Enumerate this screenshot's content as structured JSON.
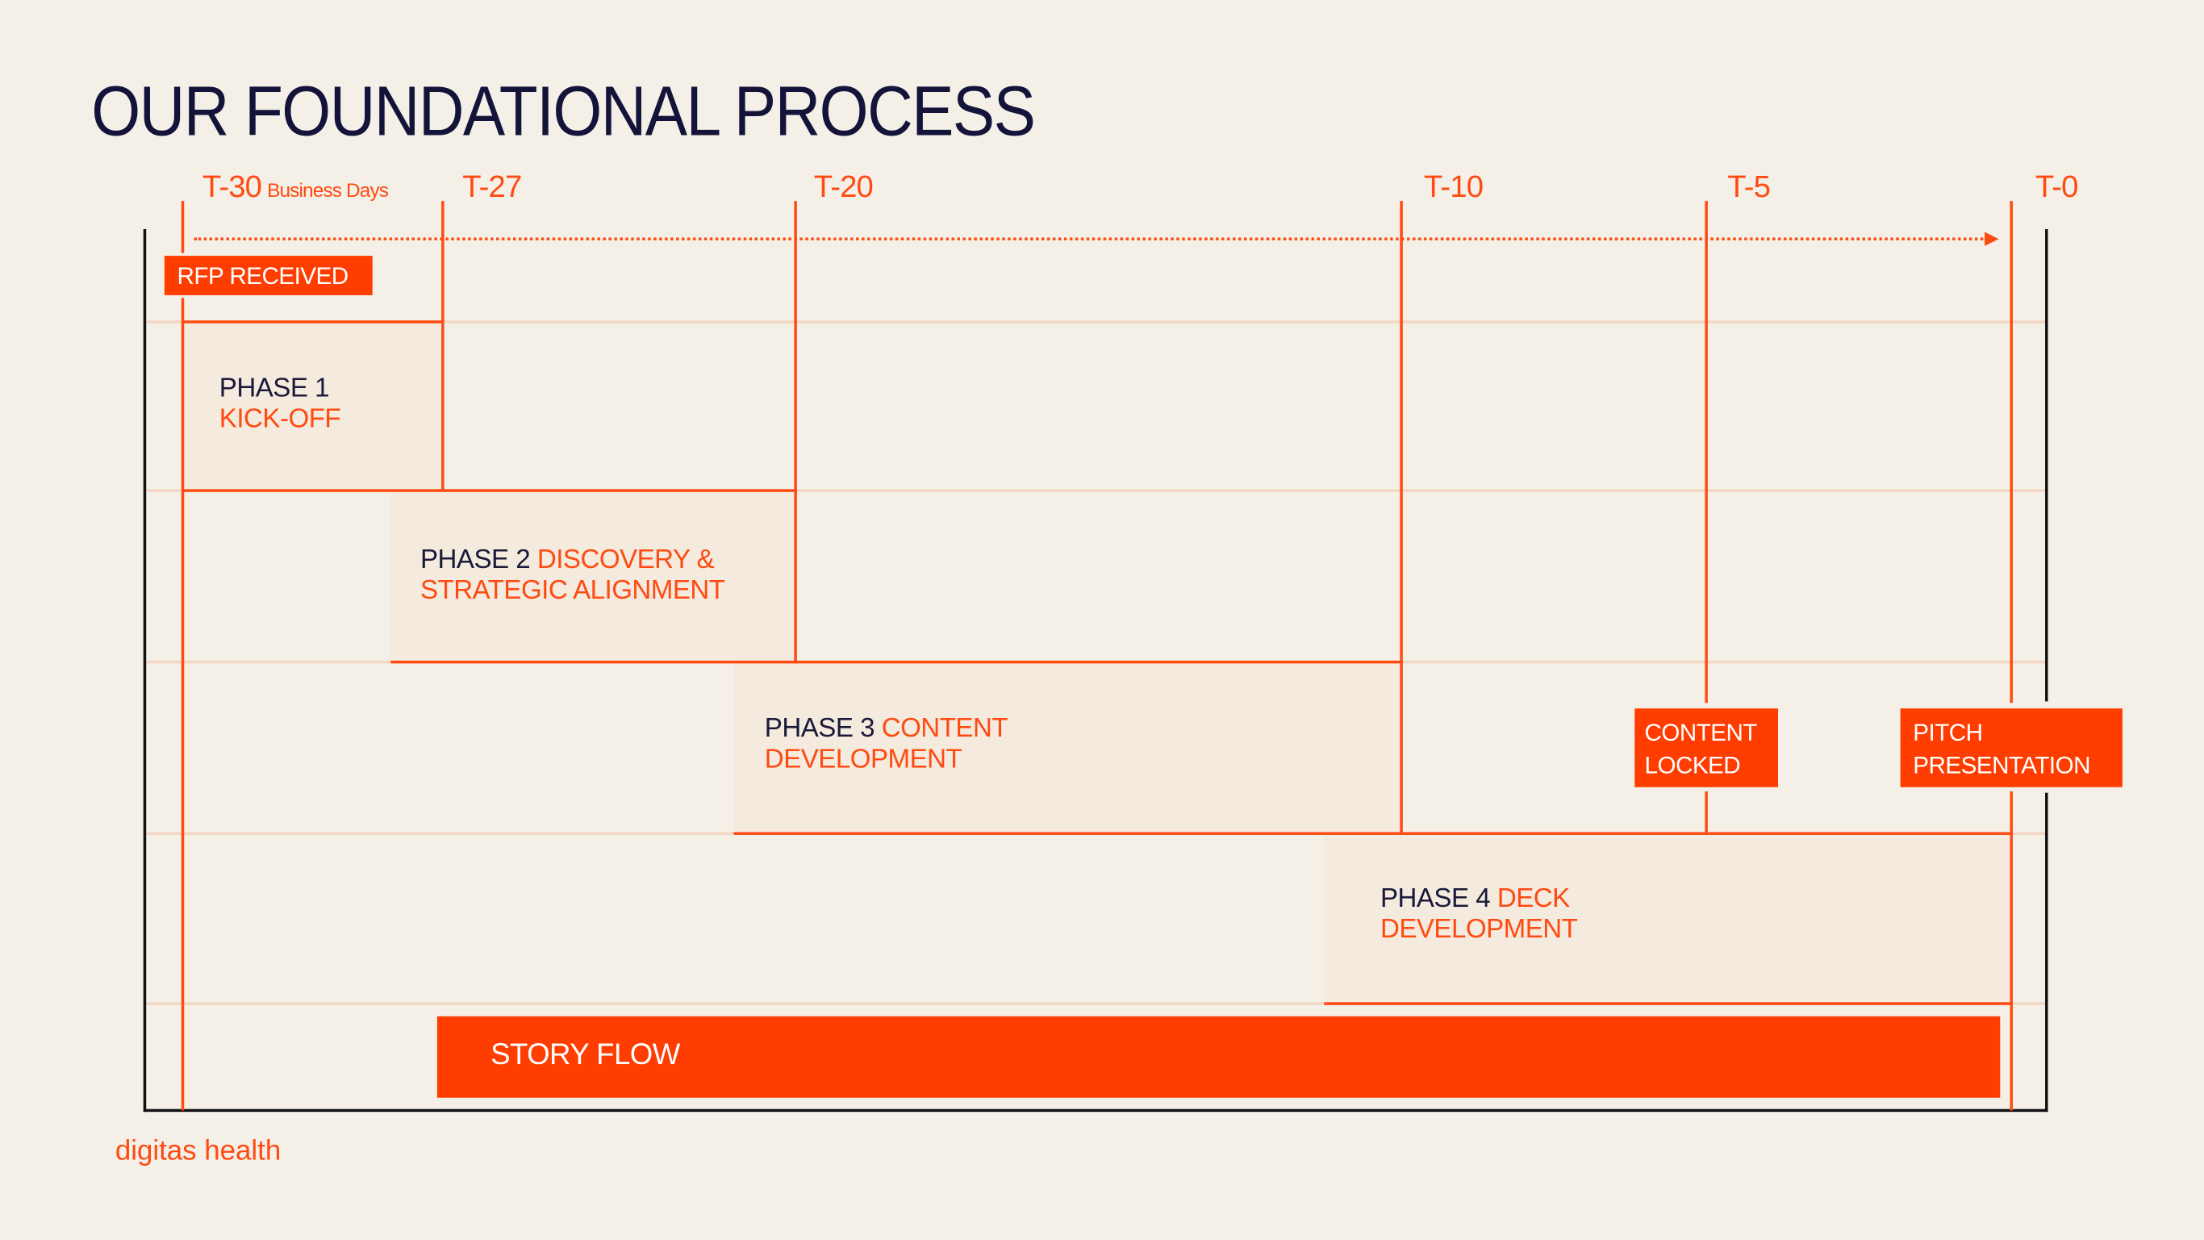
{
  "title": "OUR FOUNDATIONAL PROCESS",
  "timeline": {
    "unit": "Business Days",
    "ticks": [
      "T-30",
      "T-27",
      "T-20",
      "T-10",
      "T-5",
      "T-0"
    ]
  },
  "milestones": {
    "rfp": "RFP RECEIVED",
    "content_locked": [
      "CONTENT",
      "LOCKED"
    ],
    "pitch": [
      "PITCH",
      "PRESENTATION"
    ]
  },
  "phases": [
    {
      "label": "PHASE 1",
      "name": "KICK-OFF"
    },
    {
      "label": "PHASE 2",
      "name": "DISCOVERY &",
      "name2": "STRATEGIC ALIGNMENT"
    },
    {
      "label": "PHASE 3",
      "name": "CONTENT",
      "name2": "DEVELOPMENT"
    },
    {
      "label": "PHASE 4",
      "name": "DECK",
      "name2": "DEVELOPMENT"
    }
  ],
  "story_flow": "STORY FLOW",
  "logo": "digitas health",
  "colors": {
    "accent": "#ff3d00",
    "background": "#f4f0e7",
    "phase_fill": "#f4eadd",
    "title": "#14143a"
  }
}
